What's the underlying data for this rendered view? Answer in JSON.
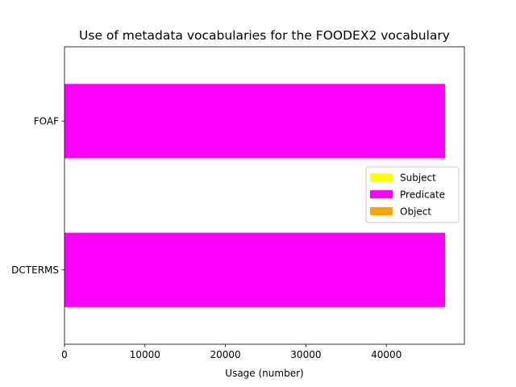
{
  "chart_data": {
    "type": "bar",
    "orientation": "horizontal",
    "stacked": true,
    "title": "Use of metadata vocabularies for the FOODEX2 vocabulary",
    "xlabel": "Usage (number)",
    "ylabel": "",
    "categories": [
      "DCTERMS",
      "FOAF"
    ],
    "xlim": [
      0,
      49700
    ],
    "xticks": [
      0,
      10000,
      20000,
      30000,
      40000
    ],
    "grid": false,
    "legend_position": "center-right",
    "series": [
      {
        "name": "Subject",
        "color": "#ffff00",
        "values": [
          0,
          0
        ]
      },
      {
        "name": "Predicate",
        "color": "#ff00ff",
        "values": [
          47300,
          47300
        ]
      },
      {
        "name": "Object",
        "color": "#ffa500",
        "values": [
          0,
          0
        ]
      }
    ]
  }
}
